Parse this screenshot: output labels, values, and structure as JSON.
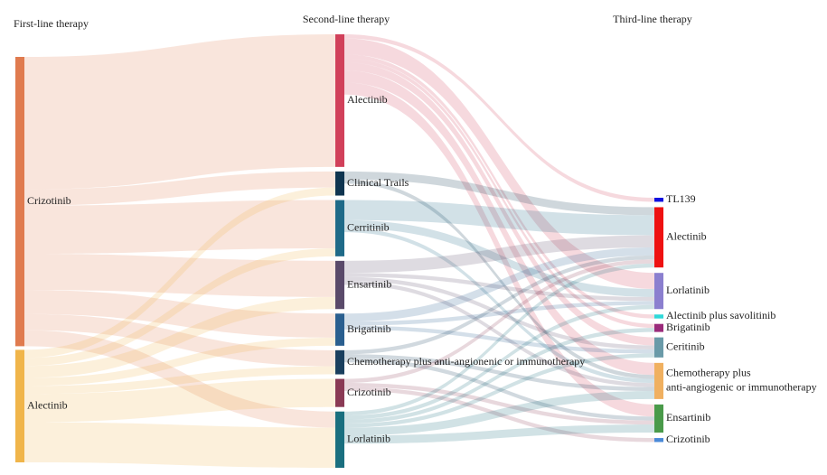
{
  "chart_data": {
    "type": "sankey",
    "columns": [
      "First-line therapy",
      "Second-line therapy",
      "Third-line therapy"
    ],
    "nodes": [
      {
        "label": "Crizotinib",
        "column": 0,
        "color": "#e07b4f"
      },
      {
        "label": "Alectinib",
        "column": 0,
        "color": "#f0b54a"
      },
      {
        "label": "Alectinib",
        "column": 1,
        "color": "#d1405a"
      },
      {
        "label": "Clinical Trails",
        "column": 1,
        "color": "#0f3550"
      },
      {
        "label": "Cerritinib",
        "column": 1,
        "color": "#1f6a88"
      },
      {
        "label": "Ensartinib",
        "column": 1,
        "color": "#5a4a6a"
      },
      {
        "label": "Brigatinib",
        "column": 1,
        "color": "#2a5f8f"
      },
      {
        "label": "Chemotherapy plus anti-angionenic or immunotherapy",
        "column": 1,
        "color": "#1a3f5e"
      },
      {
        "label": "Crizotinib",
        "column": 1,
        "color": "#8a3a55"
      },
      {
        "label": "Lorlatinib",
        "column": 1,
        "color": "#1a6f7f"
      },
      {
        "label": "TL139",
        "column": 2,
        "color": "#1010e0"
      },
      {
        "label": "Alectinib",
        "column": 2,
        "color": "#ee1111"
      },
      {
        "label": "Lorlatinib",
        "column": 2,
        "color": "#8b7fcf"
      },
      {
        "label": "Alectinib plus savolitinib",
        "column": 2,
        "color": "#30d8d8"
      },
      {
        "label": "Brigatinib",
        "column": 2,
        "color": "#9a2a7a"
      },
      {
        "label": "Ceritinib",
        "column": 2,
        "color": "#6a9aa8"
      },
      {
        "label": [
          "Chemotherapy plus",
          "anti-angiogenic or immunotherapy"
        ],
        "column": 2,
        "color": "#f0b060"
      },
      {
        "label": "Ensartinib",
        "column": 2,
        "color": "#4a9a4a"
      },
      {
        "label": "Crizotinib",
        "column": 2,
        "color": "#4a8ad8"
      }
    ],
    "links": [
      {
        "source": 0,
        "target": 2,
        "value": 33
      },
      {
        "source": 0,
        "target": 3,
        "value": 4
      },
      {
        "source": 0,
        "target": 4,
        "value": 12
      },
      {
        "source": 0,
        "target": 5,
        "value": 9
      },
      {
        "source": 0,
        "target": 6,
        "value": 6
      },
      {
        "source": 0,
        "target": 7,
        "value": 4
      },
      {
        "source": 0,
        "target": 9,
        "value": 4
      },
      {
        "source": 1,
        "target": 3,
        "value": 2
      },
      {
        "source": 1,
        "target": 4,
        "value": 2
      },
      {
        "source": 1,
        "target": 5,
        "value": 3
      },
      {
        "source": 1,
        "target": 6,
        "value": 2
      },
      {
        "source": 1,
        "target": 7,
        "value": 2
      },
      {
        "source": 1,
        "target": 8,
        "value": 7
      },
      {
        "source": 1,
        "target": 9,
        "value": 10
      },
      {
        "source": 2,
        "target": 10,
        "value": 1
      },
      {
        "source": 2,
        "target": 12,
        "value": 4
      },
      {
        "source": 2,
        "target": 13,
        "value": 1
      },
      {
        "source": 2,
        "target": 14,
        "value": 1
      },
      {
        "source": 2,
        "target": 15,
        "value": 2
      },
      {
        "source": 2,
        "target": 16,
        "value": 3
      },
      {
        "source": 2,
        "target": 17,
        "value": 3
      },
      {
        "source": 3,
        "target": 11,
        "value": 2
      },
      {
        "source": 3,
        "target": 16,
        "value": 1
      },
      {
        "source": 4,
        "target": 11,
        "value": 5
      },
      {
        "source": 4,
        "target": 12,
        "value": 2
      },
      {
        "source": 4,
        "target": 16,
        "value": 1
      },
      {
        "source": 5,
        "target": 11,
        "value": 3
      },
      {
        "source": 5,
        "target": 12,
        "value": 1
      },
      {
        "source": 5,
        "target": 15,
        "value": 1
      },
      {
        "source": 5,
        "target": 16,
        "value": 1
      },
      {
        "source": 6,
        "target": 11,
        "value": 2
      },
      {
        "source": 6,
        "target": 12,
        "value": 1
      },
      {
        "source": 6,
        "target": 15,
        "value": 1
      },
      {
        "source": 7,
        "target": 11,
        "value": 1
      },
      {
        "source": 7,
        "target": 16,
        "value": 1
      },
      {
        "source": 7,
        "target": 17,
        "value": 1
      },
      {
        "source": 8,
        "target": 11,
        "value": 1
      },
      {
        "source": 8,
        "target": 17,
        "value": 1
      },
      {
        "source": 8,
        "target": 18,
        "value": 1
      },
      {
        "source": 9,
        "target": 11,
        "value": 1
      },
      {
        "source": 9,
        "target": 12,
        "value": 1
      },
      {
        "source": 9,
        "target": 14,
        "value": 1
      },
      {
        "source": 9,
        "target": 15,
        "value": 1
      },
      {
        "source": 9,
        "target": 16,
        "value": 2
      },
      {
        "source": 9,
        "target": 17,
        "value": 2
      }
    ]
  }
}
